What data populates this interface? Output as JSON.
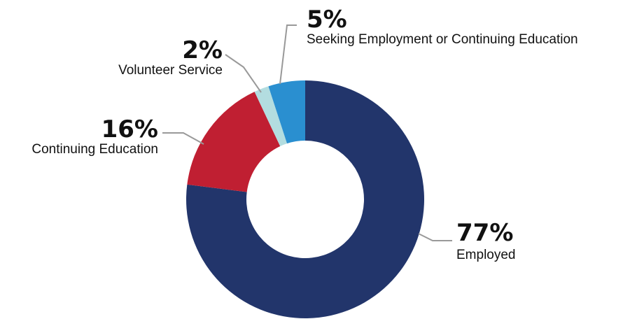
{
  "chart_data": {
    "type": "pie",
    "donut": true,
    "title": "",
    "legend": "none",
    "slices": [
      {
        "label": "Employed",
        "value": 77,
        "value_label": "77%",
        "color": "#22356b"
      },
      {
        "label": "Continuing Education",
        "value": 16,
        "value_label": "16%",
        "color": "#c01f32"
      },
      {
        "label": "Volunteer Service",
        "value": 2,
        "value_label": "2%",
        "color": "#b3dde0"
      },
      {
        "label": "Seeking Employment or Continuing Education",
        "value": 5,
        "value_label": "5%",
        "color": "#2a8fd0"
      }
    ]
  }
}
